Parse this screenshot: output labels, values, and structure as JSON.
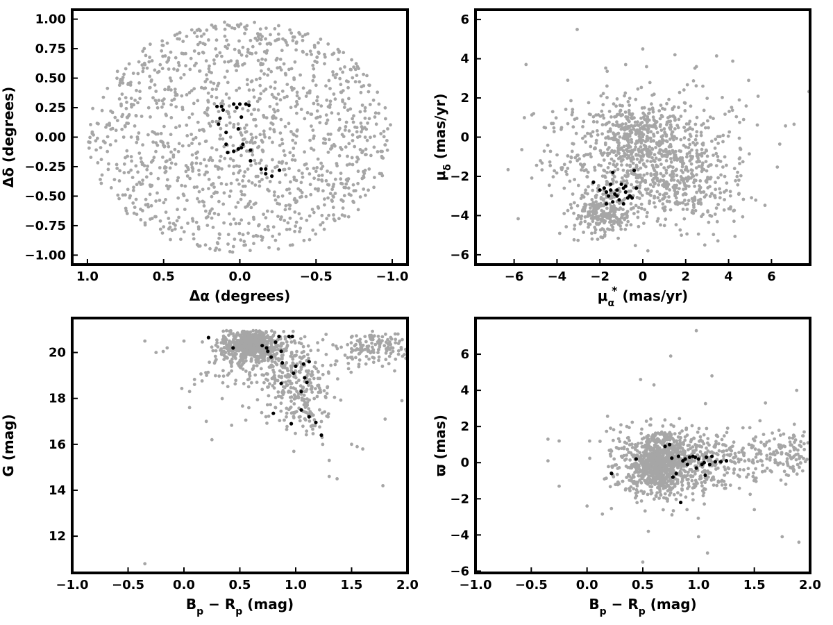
{
  "chart_data": [
    {
      "type": "scatter",
      "panel": "top-left",
      "xlabel": "Δα (degrees)",
      "ylabel": "Δδ (degrees)",
      "xlim": [
        1.1,
        -1.1
      ],
      "ylim": [
        -1.08,
        1.08
      ],
      "x_inverted": true,
      "xticks": [
        1.0,
        0.5,
        0.0,
        -0.5,
        -1.0
      ],
      "xtick_labels": [
        "1.0",
        "0.5",
        "0.0",
        "−0.5",
        "−1.0"
      ],
      "yticks": [
        -1.0,
        -0.75,
        -0.5,
        -0.25,
        0.0,
        0.25,
        0.5,
        0.75,
        1.0
      ],
      "ytick_labels": [
        "−1.00",
        "−0.75",
        "−0.50",
        "−0.25",
        "0.00",
        "0.25",
        "0.50",
        "0.75",
        "1.00"
      ],
      "series": [
        {
          "role": "field",
          "color": "#a6a6a6",
          "distribution": "uniform-ellipse",
          "count": 1300,
          "x_center": 0.0,
          "y_center": 0.0,
          "x_radius": 1.0,
          "y_radius": 0.98
        },
        {
          "role": "members",
          "color": "#000000",
          "points": [
            [
              0.15,
              0.26
            ],
            [
              0.12,
              0.26
            ],
            [
              0.13,
              0.16
            ],
            [
              0.11,
              0.23
            ],
            [
              0.14,
              0.11
            ],
            [
              0.04,
              0.28
            ],
            [
              0.02,
              0.25
            ],
            [
              0.0,
              0.28
            ],
            [
              -0.04,
              0.28
            ],
            [
              -0.06,
              0.27
            ],
            [
              -0.01,
              0.17
            ],
            [
              0.01,
              0.07
            ],
            [
              0.09,
              0.04
            ],
            [
              0.09,
              -0.06
            ],
            [
              -0.02,
              -0.06
            ],
            [
              -0.01,
              -0.09
            ],
            [
              0.01,
              -0.1
            ],
            [
              0.04,
              -0.12
            ],
            [
              0.08,
              -0.13
            ],
            [
              -0.07,
              -0.11
            ],
            [
              -0.07,
              -0.2
            ],
            [
              -0.14,
              -0.27
            ],
            [
              -0.17,
              -0.31
            ],
            [
              -0.17,
              -0.27
            ],
            [
              -0.21,
              -0.33
            ],
            [
              -0.26,
              -0.28
            ]
          ]
        }
      ]
    },
    {
      "type": "scatter",
      "panel": "top-right",
      "xlabel": "μα* (mas/yr)",
      "xlabel_parts": {
        "main": "μ",
        "sub": "α",
        "sup": "*",
        "unit": "(mas/yr)"
      },
      "ylabel": "μδ (mas/yr)",
      "ylabel_parts": {
        "main": "μ",
        "sub": "δ",
        "unit": "(mas/yr)"
      },
      "xlim": [
        -7.8,
        7.8
      ],
      "ylim": [
        -6.5,
        6.5
      ],
      "xticks": [
        -6,
        -4,
        -2,
        0,
        2,
        4,
        6
      ],
      "xtick_labels": [
        "−6",
        "−4",
        "−2",
        "0",
        "2",
        "4",
        "6"
      ],
      "yticks": [
        -6,
        -4,
        -2,
        0,
        2,
        4,
        6
      ],
      "ytick_labels": [
        "−6",
        "−4",
        "−2",
        "0",
        "2",
        "4",
        "6"
      ],
      "series": [
        {
          "role": "field",
          "color": "#a6a6a6",
          "distribution": "clustered",
          "clumps": [
            {
              "x": 0.3,
              "y": -1.0,
              "sx": 1.9,
              "sy": 1.5,
              "count": 650
            },
            {
              "x": -1.8,
              "y": -3.8,
              "sx": 0.7,
              "sy": 0.6,
              "count": 260
            },
            {
              "x": -0.5,
              "y": 0.2,
              "sx": 0.6,
              "sy": 0.6,
              "count": 140
            },
            {
              "x": 2.4,
              "y": -2.6,
              "sx": 1.3,
              "sy": 1.0,
              "count": 160
            },
            {
              "x": 0.0,
              "y": 0.0,
              "sx": 2.7,
              "sy": 2.0,
              "count": 140
            }
          ],
          "outliers": [
            [
              0.0,
              4.5
            ],
            [
              1.5,
              4.2
            ],
            [
              -0.8,
              3.7
            ],
            [
              2.5,
              3.6
            ],
            [
              -3.5,
              2.9
            ],
            [
              2.8,
              2.6
            ],
            [
              -4.2,
              1.3
            ],
            [
              4.5,
              1.9
            ],
            [
              4.7,
              0.9
            ],
            [
              -4.6,
              0.5
            ],
            [
              -3.0,
              -4.0
            ],
            [
              3.8,
              -2.8
            ],
            [
              4.5,
              -1.1
            ]
          ]
        },
        {
          "role": "members",
          "color": "#000000",
          "points": [
            [
              -2.3,
              -2.3
            ],
            [
              -1.4,
              -1.8
            ],
            [
              -0.4,
              -1.7
            ],
            [
              -2.0,
              -2.7
            ],
            [
              -1.8,
              -2.6
            ],
            [
              -1.7,
              -2.8
            ],
            [
              -1.5,
              -2.4
            ],
            [
              -1.5,
              -2.7
            ],
            [
              -1.3,
              -2.9
            ],
            [
              -1.2,
              -3.0
            ],
            [
              -1.0,
              -2.4
            ],
            [
              -0.9,
              -2.6
            ],
            [
              -0.8,
              -2.5
            ],
            [
              -0.8,
              -2.8
            ],
            [
              -0.7,
              -3.1
            ],
            [
              -0.6,
              -3.0
            ],
            [
              -0.3,
              -2.6
            ],
            [
              -1.1,
              -3.2
            ],
            [
              -1.4,
              -3.3
            ],
            [
              -1.7,
              -3.4
            ],
            [
              -0.9,
              -3.4
            ],
            [
              -0.5,
              -3.1
            ],
            [
              -1.2,
              -2.7
            ],
            [
              -1.6,
              -3.0
            ]
          ]
        }
      ]
    },
    {
      "type": "scatter",
      "panel": "bottom-left",
      "xlabel": "Bp − Rp (mag)",
      "xlabel_parts": {
        "b": "B",
        "bsub": "p",
        "r": "R",
        "rsub": "p",
        "unit": "(mag)"
      },
      "ylabel": "G (mag)",
      "xlim": [
        -1.0,
        2.0
      ],
      "ylim": [
        10.4,
        21.5
      ],
      "y_inverted": false,
      "xticks": [
        -1.0,
        -0.5,
        0.0,
        0.5,
        1.0,
        1.5,
        2.0
      ],
      "xtick_labels": [
        "−1.0",
        "−0.5",
        "0.0",
        "0.5",
        "1.0",
        "1.5",
        "2.0"
      ],
      "yticks": [
        12,
        14,
        16,
        18,
        20
      ],
      "ytick_labels": [
        "12",
        "14",
        "16",
        "18",
        "20"
      ],
      "series": [
        {
          "role": "field",
          "color": "#a6a6a6",
          "distribution": "clustered",
          "clumps": [
            {
              "x": 0.6,
              "y": 20.3,
              "sx": 0.14,
              "sy": 0.35,
              "count": 600
            },
            {
              "x": 0.95,
              "y": 19.0,
              "sx": 0.16,
              "sy": 0.9,
              "count": 260
            },
            {
              "x": 1.1,
              "y": 17.5,
              "sx": 0.1,
              "sy": 0.6,
              "count": 70
            },
            {
              "x": 1.7,
              "y": 20.2,
              "sx": 0.2,
              "sy": 0.4,
              "count": 160
            },
            {
              "x": 0.5,
              "y": 19.2,
              "sx": 0.2,
              "sy": 0.8,
              "count": 80
            }
          ],
          "y_max": 20.95,
          "outliers": [
            [
              -0.35,
              10.8
            ],
            [
              -0.35,
              20.5
            ],
            [
              -0.25,
              20.0
            ],
            [
              -0.15,
              20.2
            ],
            [
              0.0,
              20.5
            ],
            [
              0.05,
              18.3
            ],
            [
              0.05,
              17.6
            ],
            [
              0.25,
              16.2
            ],
            [
              0.2,
              17.0
            ],
            [
              1.3,
              14.6
            ],
            [
              1.37,
              14.5
            ],
            [
              1.78,
              14.2
            ],
            [
              1.8,
              17.1
            ],
            [
              1.55,
              15.9
            ],
            [
              1.5,
              16.0
            ],
            [
              1.3,
              15.3
            ],
            [
              1.6,
              15.8
            ],
            [
              1.95,
              17.9
            ]
          ]
        },
        {
          "role": "members",
          "color": "#000000",
          "points": [
            [
              0.22,
              20.65
            ],
            [
              0.44,
              20.2
            ],
            [
              0.7,
              20.3
            ],
            [
              0.74,
              20.2
            ],
            [
              0.75,
              20.05
            ],
            [
              0.78,
              19.8
            ],
            [
              0.82,
              20.45
            ],
            [
              0.85,
              20.7
            ],
            [
              0.87,
              20.05
            ],
            [
              0.88,
              19.55
            ],
            [
              0.94,
              20.7
            ],
            [
              0.97,
              20.7
            ],
            [
              1.0,
              19.4
            ],
            [
              0.98,
              19.1
            ],
            [
              1.05,
              18.3
            ],
            [
              1.07,
              19.5
            ],
            [
              1.08,
              18.9
            ],
            [
              1.1,
              18.7
            ],
            [
              1.12,
              19.6
            ],
            [
              0.87,
              18.65
            ],
            [
              0.8,
              17.35
            ],
            [
              0.96,
              16.9
            ],
            [
              1.05,
              17.5
            ],
            [
              1.12,
              17.2
            ],
            [
              1.18,
              16.95
            ],
            [
              1.23,
              16.4
            ]
          ]
        }
      ]
    },
    {
      "type": "scatter",
      "panel": "bottom-right",
      "xlabel": "Bp − Rp (mag)",
      "xlabel_parts": {
        "b": "B",
        "bsub": "p",
        "r": "R",
        "rsub": "p",
        "unit": "(mag)"
      },
      "ylabel": "ϖ (mas)",
      "xlim": [
        -1.0,
        2.0
      ],
      "ylim": [
        -6.1,
        8.0
      ],
      "xticks": [
        -1.0,
        -0.5,
        0.0,
        0.5,
        1.0,
        1.5,
        2.0
      ],
      "xtick_labels": [
        "−1.0",
        "−0.5",
        "0.0",
        "0.5",
        "1.0",
        "1.5",
        "2.0"
      ],
      "yticks": [
        -6,
        -4,
        -2,
        0,
        2,
        4,
        6
      ],
      "ytick_labels": [
        "−6",
        "−4",
        "−2",
        "0",
        "2",
        "4",
        "6"
      ],
      "series": [
        {
          "role": "field",
          "color": "#a6a6a6",
          "distribution": "clustered",
          "clumps": [
            {
              "x": 0.65,
              "y": 0.0,
              "sx": 0.12,
              "sy": 0.8,
              "count": 750
            },
            {
              "x": 0.95,
              "y": 0.0,
              "sx": 0.2,
              "sy": 1.0,
              "count": 300
            },
            {
              "x": 1.5,
              "y": 0.3,
              "sx": 0.22,
              "sy": 0.7,
              "count": 120
            },
            {
              "x": 1.85,
              "y": 0.6,
              "sx": 0.12,
              "sy": 0.8,
              "count": 90
            },
            {
              "x": 0.35,
              "y": 0.1,
              "sx": 0.12,
              "sy": 1.0,
              "count": 100
            }
          ],
          "outliers": [
            [
              0.98,
              7.3
            ],
            [
              0.75,
              5.9
            ],
            [
              1.12,
              4.8
            ],
            [
              0.48,
              4.6
            ],
            [
              0.6,
              4.3
            ],
            [
              1.6,
              3.3
            ],
            [
              1.88,
              4.0
            ],
            [
              -0.35,
              1.3
            ],
            [
              -0.25,
              1.2
            ],
            [
              -0.35,
              0.1
            ],
            [
              -0.25,
              -1.3
            ],
            [
              0.0,
              -2.4
            ],
            [
              0.5,
              -5.5
            ],
            [
              1.08,
              -5.0
            ],
            [
              1.75,
              -4.1
            ],
            [
              1.9,
              -4.4
            ],
            [
              1.5,
              -2.6
            ],
            [
              0.55,
              -3.8
            ],
            [
              1.0,
              -4.1
            ]
          ]
        },
        {
          "role": "members",
          "color": "#000000",
          "points": [
            [
              0.22,
              -0.6
            ],
            [
              0.44,
              0.2
            ],
            [
              0.7,
              0.9
            ],
            [
              0.74,
              1.0
            ],
            [
              0.76,
              0.25
            ],
            [
              0.77,
              -0.8
            ],
            [
              0.8,
              -0.6
            ],
            [
              0.82,
              0.35
            ],
            [
              0.86,
              0.1
            ],
            [
              0.88,
              0.2
            ],
            [
              0.92,
              0.3
            ],
            [
              0.95,
              0.35
            ],
            [
              0.97,
              0.3
            ],
            [
              0.98,
              -0.3
            ],
            [
              1.0,
              0.2
            ],
            [
              1.03,
              -0.1
            ],
            [
              1.05,
              0.0
            ],
            [
              1.07,
              0.3
            ],
            [
              1.1,
              -0.1
            ],
            [
              1.12,
              0.35
            ],
            [
              1.15,
              0.05
            ],
            [
              1.2,
              0.05
            ],
            [
              1.25,
              0.1
            ],
            [
              0.84,
              -2.2
            ],
            [
              1.06,
              -0.7
            ],
            [
              0.9,
              -0.1
            ]
          ]
        }
      ]
    }
  ]
}
